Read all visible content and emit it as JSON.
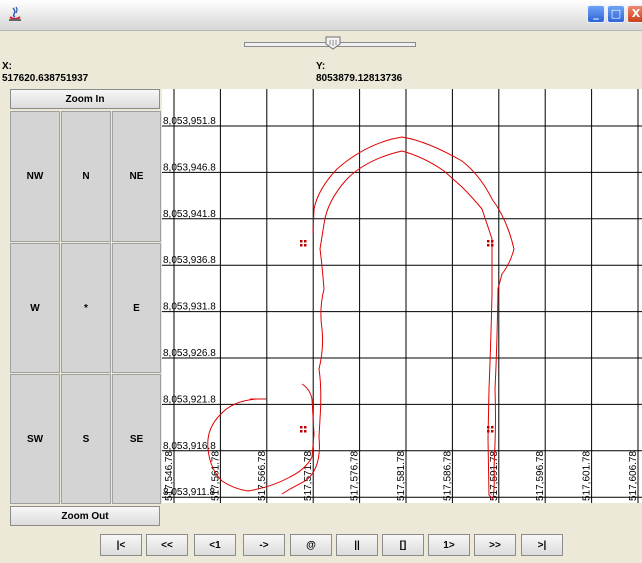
{
  "window": {
    "title": "",
    "controls": [
      "minimize-icon",
      "maximize-icon",
      "close-icon"
    ]
  },
  "zoom_slider": {
    "value_fraction": 0.52
  },
  "coords": {
    "x_label": "X:",
    "x_value": "517620.638751937",
    "y_label": "Y:",
    "y_value": "8053879.12813736"
  },
  "controls": {
    "zoom_in": "Zoom In",
    "zoom_out": "Zoom Out",
    "directions": [
      "NW",
      "N",
      "NE",
      "W",
      "*",
      "E",
      "SW",
      "S",
      "SE"
    ]
  },
  "map": {
    "y_ticks": [
      "8,053,951.8",
      "8,053,946.8",
      "8,053,941.8",
      "8,053,936.8",
      "8,053,931.8",
      "8,053,926.8",
      "8,053,921.8",
      "8,053,916.8",
      "8,053,911.8"
    ],
    "x_ticks": [
      "517,546.78",
      "517,561.78",
      "517,566.78",
      "517,571.78",
      "517,576.78",
      "517,581.78",
      "517,586.78",
      "517,591.78",
      "517,596.78",
      "517,601.78",
      "517,606.78"
    ],
    "colors": {
      "outline": "#e00000",
      "grid": "#000000",
      "marker": "#c00000"
    }
  },
  "navigation": {
    "buttons": [
      "|<",
      "<<",
      "<1",
      "->",
      "@",
      "||",
      "[]",
      "1>",
      ">>",
      ">|"
    ]
  }
}
